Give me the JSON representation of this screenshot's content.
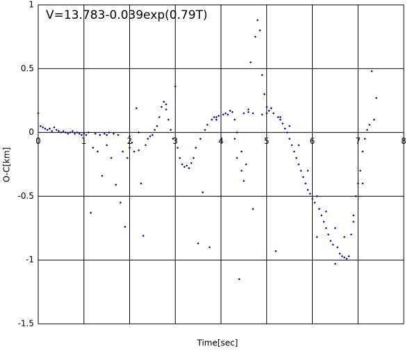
{
  "chart_data": {
    "type": "scatter",
    "title": "V=13.783-0.039exp(0.79T)",
    "x_label": "Time[sec]",
    "y_label": "O-C[km]",
    "xlim": [
      0,
      8
    ],
    "ylim": [
      -1.5,
      1
    ],
    "xticks": [
      0,
      1,
      2,
      3,
      4,
      5,
      6,
      7,
      8
    ],
    "yticks": [
      -1.5,
      -1,
      -0.5,
      0,
      0.5,
      1
    ],
    "grid": true,
    "series": [
      {
        "color": "#000080",
        "x": [
          0,
          0.05,
          0.1,
          0.15,
          0.2,
          0.25,
          0.3,
          0.35,
          0.4,
          0.45,
          0.5,
          0.55,
          0.6,
          0.65,
          0.7,
          0.75,
          0.8,
          0.85,
          0.9,
          0.95,
          1,
          1.05,
          1.1,
          1.15,
          1.2,
          1.25,
          1.3,
          1.35,
          1.4,
          1.45,
          1.5,
          1.55,
          1.6,
          1.65,
          1.7,
          1.75,
          1.8,
          1.85,
          1.9,
          1.95,
          2,
          2.05,
          2.1,
          2.15,
          2.2,
          2.25,
          2.3,
          2.35,
          2.4,
          2.45,
          2.5,
          2.55,
          2.6,
          2.65,
          2.7,
          2.75,
          2.8,
          2.85,
          2.9,
          2.95,
          3,
          3.05,
          3.1,
          3.15,
          3.2,
          3.25,
          3.3,
          3.35,
          3.4,
          3.45,
          3.5,
          3.55,
          3.6,
          3.65,
          3.7,
          3.75,
          3.8,
          3.85,
          3.9,
          3.95,
          4,
          4.05,
          4.1,
          4.15,
          4.2,
          4.25,
          4.3,
          4.35,
          4.4,
          4.45,
          4.5,
          4.55,
          4.6,
          4.65,
          4.7,
          4.75,
          4.8,
          4.85,
          4.9,
          4.95,
          5,
          5.05,
          5.1,
          5.15,
          5.2,
          5.25,
          5.3,
          5.35,
          5.4,
          5.45,
          5.5,
          5.55,
          5.6,
          5.65,
          5.7,
          5.75,
          5.8,
          5.85,
          5.9,
          5.95,
          6,
          6.05,
          6.1,
          6.15,
          6.2,
          6.25,
          6.3,
          6.35,
          6.4,
          6.45,
          6.5,
          6.55,
          6.6,
          6.65,
          6.7,
          6.75,
          6.8,
          6.85,
          6.9,
          6.95,
          7,
          7.05,
          7.1,
          7.15,
          7.2,
          7.25,
          7.3,
          7.35,
          7.4,
          4.5,
          4.6,
          4.7,
          4.9,
          5,
          5.3,
          5.5,
          5.7,
          5.9,
          6.1,
          6.3,
          6.5,
          6.7,
          6.9,
          7.1,
          2.8,
          3.9,
          1.5,
          2,
          2.2,
          4.3,
          4.35,
          4.45
        ],
        "values": [
          0.15,
          0.05,
          0.04,
          0.03,
          0.02,
          0.03,
          0.01,
          0.04,
          0.02,
          0.01,
          0,
          0.01,
          0,
          -0.01,
          0,
          0.01,
          -0.01,
          0,
          -0.01,
          -0.02,
          -0.01,
          -0.02,
          0,
          -0.63,
          -0.12,
          -0.01,
          -0.15,
          -0.02,
          -0.34,
          -0.01,
          -0.1,
          0,
          -0.2,
          -0.01,
          -0.41,
          -0.02,
          -0.55,
          -0.15,
          -0.74,
          -0.2,
          -0.12,
          -0.08,
          -0.15,
          0.19,
          -0.14,
          -0.4,
          -0.81,
          -0.1,
          -0.05,
          -0.03,
          -0.02,
          0.02,
          0.05,
          0.12,
          0.2,
          0.24,
          0.18,
          0.1,
          0.02,
          -0.05,
          0.36,
          -0.12,
          -0.2,
          -0.25,
          -0.27,
          -0.26,
          -0.28,
          -0.24,
          -0.2,
          -0.12,
          -0.87,
          -0.05,
          -0.47,
          0.02,
          0.06,
          -0.9,
          0.1,
          0.12,
          0.1,
          0.13,
          -0.5,
          0.14,
          0.15,
          0.14,
          0.17,
          0.16,
          0.1,
          0,
          -1.15,
          -0.15,
          -0.38,
          -0.25,
          0.18,
          0.55,
          -0.6,
          0.75,
          0.88,
          0.8,
          0.45,
          0.3,
          0.2,
          0.17,
          0.19,
          0.15,
          -0.93,
          0.12,
          0.1,
          0.07,
          0.03,
          0,
          -0.05,
          -0.1,
          -0.15,
          -0.2,
          -0.25,
          -0.3,
          -0.35,
          -0.4,
          -0.45,
          -0.48,
          -0.52,
          -0.55,
          -0.82,
          -0.6,
          -0.65,
          -0.7,
          -0.75,
          -0.8,
          -0.85,
          -0.88,
          -1.03,
          -0.9,
          -0.95,
          -0.97,
          -0.98,
          -0.99,
          -0.97,
          -0.8,
          -0.65,
          -0.5,
          -0.4,
          -0.3,
          -0.15,
          -0.05,
          0.02,
          0.06,
          0.48,
          0.1,
          0.27,
          0.15,
          0.16,
          0.15,
          0.14,
          0.15,
          0.12,
          0.05,
          -0.1,
          -0.3,
          -0.5,
          -0.62,
          -0.75,
          -0.82,
          -0.7,
          -0.4,
          0.22,
          0.12,
          -0.02,
          -0.03,
          0,
          -0.05,
          -0.2,
          -0.3
        ]
      }
    ]
  }
}
